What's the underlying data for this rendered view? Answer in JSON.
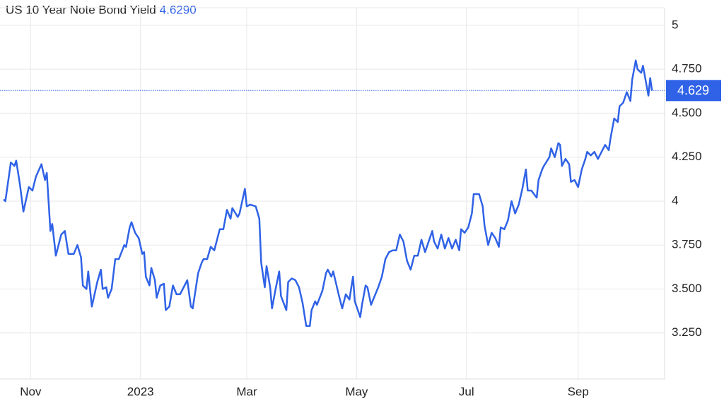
{
  "chart_data": {
    "type": "line",
    "title": "US 10 Year Note Bond Yield",
    "price": "4.6290",
    "color": "#2f62e6",
    "grid": true,
    "current": {
      "value": 4.629,
      "label": "4.629"
    },
    "xlim": [
      -17,
      352
    ],
    "xticks": [
      {
        "value": 0,
        "label": "Nov"
      },
      {
        "value": 61,
        "label": "2023"
      },
      {
        "value": 120,
        "label": "Mar"
      },
      {
        "value": 181,
        "label": "May"
      },
      {
        "value": 242,
        "label": "Jul"
      },
      {
        "value": 304,
        "label": "Sep"
      }
    ],
    "ylim": [
      3.0,
      5.1
    ],
    "yticks": [
      {
        "value": 3.25,
        "label": "3.250"
      },
      {
        "value": 3.5,
        "label": "3.500"
      },
      {
        "value": 3.75,
        "label": "3.750"
      },
      4,
      {
        "value": 4.25,
        "label": "4.250"
      },
      {
        "value": 4.5,
        "label": "4.500"
      },
      {
        "value": 4.75,
        "label": "4.750"
      },
      5
    ],
    "x": [
      -15,
      -14,
      -11,
      -9,
      -8,
      -6,
      -4,
      -1,
      1,
      3,
      6,
      8,
      9,
      11,
      12,
      14,
      17,
      19,
      21,
      24,
      26,
      28,
      29,
      31,
      32,
      34,
      37,
      39,
      40,
      42,
      43,
      45,
      47,
      49,
      52,
      53,
      55,
      56,
      58,
      60,
      62,
      63,
      64,
      66,
      67,
      69,
      70,
      72,
      74,
      75,
      77,
      79,
      81,
      83,
      85,
      87,
      89,
      90,
      93,
      95,
      96,
      98,
      100,
      102,
      105,
      107,
      109,
      111,
      112,
      115,
      116,
      119,
      120,
      122,
      125,
      127,
      128,
      130,
      131,
      133,
      134,
      136,
      138,
      139,
      142,
      143,
      145,
      147,
      149,
      151,
      153,
      155,
      156,
      158,
      159,
      162,
      164,
      165,
      167,
      168,
      171,
      173,
      175,
      177,
      179,
      180,
      183,
      184,
      186,
      187,
      189,
      191,
      193,
      195,
      197,
      199,
      201,
      203,
      205,
      207,
      209,
      211,
      213,
      215,
      217,
      219,
      221,
      223,
      224,
      226,
      228,
      230,
      232,
      234,
      236,
      238,
      239,
      241,
      243,
      245,
      246,
      249,
      251,
      252,
      254,
      256,
      258,
      260,
      261,
      263,
      265,
      267,
      269,
      271,
      273,
      275,
      276,
      278,
      281,
      282,
      284,
      285,
      288,
      289,
      291,
      293,
      294,
      295,
      297,
      299,
      300,
      302,
      304,
      306,
      308,
      309,
      311,
      313,
      315,
      317,
      319,
      321,
      322,
      324,
      326,
      327,
      329,
      331,
      333,
      334,
      336,
      337,
      339,
      340,
      343,
      344,
      345
    ],
    "values": [
      4.01,
      4.0,
      4.22,
      4.2,
      4.23,
      4.1,
      3.94,
      4.08,
      4.06,
      4.14,
      4.21,
      4.12,
      4.16,
      3.83,
      3.87,
      3.69,
      3.81,
      3.83,
      3.7,
      3.7,
      3.75,
      3.68,
      3.52,
      3.5,
      3.6,
      3.4,
      3.54,
      3.61,
      3.5,
      3.51,
      3.45,
      3.5,
      3.67,
      3.67,
      3.75,
      3.74,
      3.85,
      3.88,
      3.82,
      3.79,
      3.7,
      3.71,
      3.57,
      3.52,
      3.62,
      3.55,
      3.45,
      3.52,
      3.53,
      3.38,
      3.4,
      3.52,
      3.47,
      3.47,
      3.51,
      3.55,
      3.4,
      3.39,
      3.59,
      3.65,
      3.67,
      3.67,
      3.74,
      3.72,
      3.84,
      3.84,
      3.95,
      3.9,
      3.96,
      3.91,
      3.93,
      4.07,
      3.97,
      3.98,
      3.97,
      3.9,
      3.65,
      3.51,
      3.63,
      3.51,
      3.39,
      3.5,
      3.6,
      3.46,
      3.38,
      3.54,
      3.56,
      3.55,
      3.51,
      3.42,
      3.29,
      3.29,
      3.38,
      3.43,
      3.41,
      3.49,
      3.59,
      3.61,
      3.57,
      3.6,
      3.47,
      3.39,
      3.47,
      3.44,
      3.57,
      3.43,
      3.34,
      3.41,
      3.52,
      3.51,
      3.41,
      3.46,
      3.51,
      3.57,
      3.67,
      3.71,
      3.72,
      3.72,
      3.81,
      3.77,
      3.66,
      3.61,
      3.69,
      3.69,
      3.78,
      3.71,
      3.77,
      3.83,
      3.77,
      3.73,
      3.81,
      3.73,
      3.79,
      3.73,
      3.78,
      3.72,
      3.84,
      3.82,
      3.85,
      3.93,
      4.04,
      4.04,
      3.97,
      3.86,
      3.75,
      3.82,
      3.79,
      3.74,
      3.85,
      3.84,
      3.89,
      4.0,
      3.93,
      3.98,
      4.07,
      4.18,
      4.06,
      4.06,
      4.02,
      4.12,
      4.18,
      4.2,
      4.25,
      4.3,
      4.25,
      4.33,
      4.32,
      4.2,
      4.24,
      4.21,
      4.11,
      4.12,
      4.08,
      4.18,
      4.24,
      4.28,
      4.26,
      4.28,
      4.24,
      4.28,
      4.32,
      4.29,
      4.36,
      4.47,
      4.45,
      4.54,
      4.56,
      4.62,
      4.57,
      4.69,
      4.8,
      4.75,
      4.73,
      4.77,
      4.6,
      4.7,
      4.629
    ]
  }
}
